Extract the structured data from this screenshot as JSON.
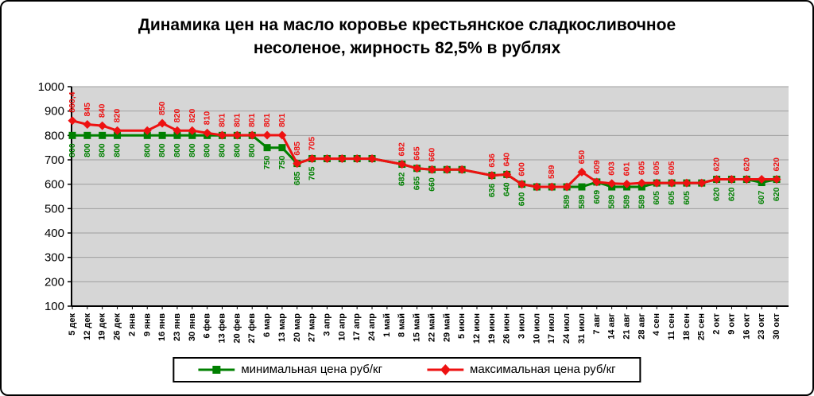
{
  "title": {
    "line1": "Динамика цен на масло коровье крестьянское сладкосливочное",
    "line2": "несоленое, жирность 82,5%  в рублях"
  },
  "legend": {
    "items": [
      {
        "label": "минимальная цена руб/кг",
        "color": "#008000",
        "marker": "square"
      },
      {
        "label": "максимальная цена руб/кг",
        "color": "#ee1111",
        "marker": "diamond"
      }
    ]
  },
  "colors": {
    "plot_background": "#d6d6d6",
    "gridline": "#9f9f9f",
    "axis": "#000000",
    "min_series": "#008000",
    "max_series": "#ee1111"
  },
  "chart_data": {
    "type": "line",
    "title": "Динамика цен на масло коровье крестьянское сладкосливочное несоленое, жирность 82,5% в рублях",
    "ylim": [
      100,
      1000
    ],
    "ytick_step": 100,
    "grid": true,
    "legend_position": "bottom",
    "categories": [
      "5 дек",
      "12 дек",
      "19 дек",
      "26 дек",
      "2 янв",
      "9 янв",
      "16 янв",
      "23 янв",
      "30 янв",
      "6 фев",
      "13 фев",
      "20 фев",
      "27 фев",
      "6 мар",
      "13 мар",
      "20 мар",
      "27 мар",
      "3 апр",
      "10 апр",
      "17 апр",
      "24 апр",
      "1 май",
      "8 май",
      "15 май",
      "22 май",
      "29 май",
      "5 июн",
      "12 июн",
      "19 июн",
      "26 июн",
      "3 июл",
      "10 июл",
      "17 июл",
      "24 июл",
      "31 июл",
      "7 авг",
      "14 авг",
      "21 авг",
      "28 авг",
      "4 сен",
      "11 сен",
      "18 сен",
      "25 сен",
      "2 окт",
      "9 окт",
      "16 окт",
      "23 окт",
      "30 окт"
    ],
    "series": [
      {
        "name": "минимальная цена руб/кг",
        "color": "#008000",
        "marker": "square",
        "values": [
          800,
          800,
          800,
          800,
          null,
          800,
          800,
          800,
          800,
          800,
          800,
          800,
          800,
          750,
          750,
          685,
          705,
          705,
          705,
          705,
          705,
          null,
          682,
          665,
          660,
          660,
          660,
          null,
          636,
          640,
          600,
          589,
          589,
          589,
          589,
          609,
          589,
          589,
          589,
          605,
          605,
          605,
          605,
          620,
          620,
          620,
          607,
          620
        ],
        "labels": [
          "800",
          "800",
          "800",
          "800",
          "",
          "800",
          "800",
          "800",
          "800",
          "800",
          "800",
          "800",
          "800",
          "750",
          "750",
          "685",
          "705",
          "",
          "",
          "",
          "",
          "",
          "682",
          "665",
          "660",
          "",
          "",
          "",
          "636",
          "640",
          "600",
          "",
          "",
          "589",
          "589",
          "609",
          "589",
          "589",
          "589",
          "605",
          "605",
          "605",
          "",
          "620",
          "620",
          "",
          "607",
          "620"
        ]
      },
      {
        "name": "максимальная цена руб/кг",
        "color": "#ee1111",
        "marker": "diamond",
        "values": [
          860.4,
          845,
          840,
          820,
          null,
          820,
          850,
          820,
          820,
          810,
          801,
          801,
          801,
          801,
          801,
          685,
          705,
          705,
          705,
          705,
          705,
          null,
          682,
          665,
          660,
          660,
          660,
          null,
          636,
          640,
          600,
          589,
          589,
          589,
          650,
          609,
          603,
          601,
          605,
          605,
          605,
          605,
          605,
          620,
          620,
          620,
          620,
          620
        ],
        "labels": [
          "860,4",
          "845",
          "840",
          "820",
          "",
          "",
          "850",
          "820",
          "820",
          "810",
          "801",
          "801",
          "801",
          "801",
          "801",
          "685",
          "705",
          "",
          "",
          "",
          "",
          "",
          "682",
          "665",
          "660",
          "",
          "",
          "",
          "636",
          "640",
          "600",
          "",
          "589",
          "",
          "650",
          "609",
          "603",
          "601",
          "605",
          "605",
          "605",
          "",
          "",
          "620",
          "",
          "620",
          "",
          "620"
        ]
      }
    ]
  }
}
